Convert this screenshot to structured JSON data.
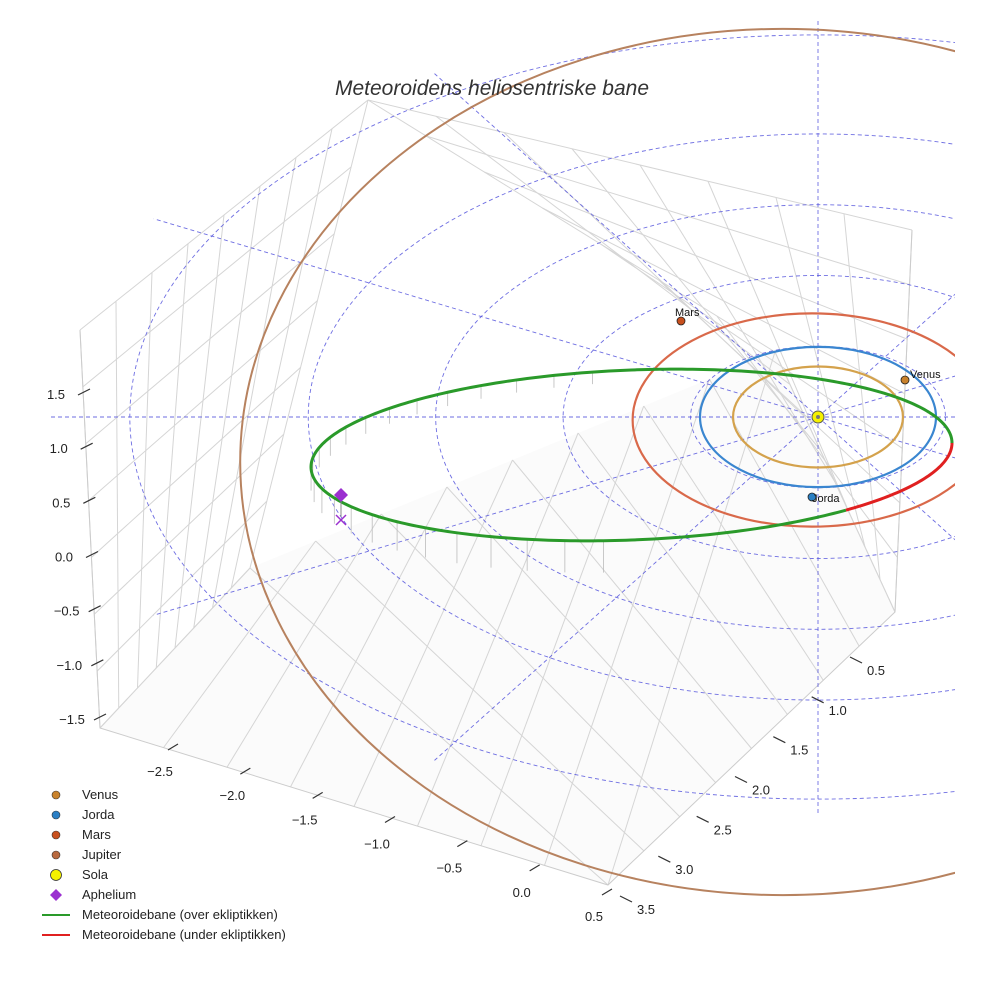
{
  "chart_data": {
    "type": "scatter3d",
    "title": "Meteoroidens heliosentriske bane",
    "axes": {
      "x_ticks": [
        "−2.5",
        "−2.0",
        "−1.5",
        "−1.0",
        "−0.5",
        "0.0",
        "0.5"
      ],
      "y_ticks": [
        "0.5",
        "1.0",
        "1.5",
        "2.0",
        "2.5",
        "3.0",
        "3.5"
      ],
      "z_ticks": [
        "1.5",
        "1.0",
        "0.5",
        "0.0",
        "−0.5",
        "−1.0",
        "−1.5"
      ],
      "x_range": [
        -2.8,
        0.6
      ],
      "y_range": [
        0.2,
        3.6
      ],
      "z_range": [
        -1.6,
        1.8
      ]
    },
    "planet_orbits": [
      {
        "name": "Venus",
        "radius_au": 0.72,
        "color": "#d4a24c"
      },
      {
        "name": "Jorda",
        "radius_au": 1.0,
        "color": "#3a86d0"
      },
      {
        "name": "Mars",
        "radius_au": 1.52,
        "color": "#d9694a"
      },
      {
        "name": "Jupiter",
        "radius_au": 5.2,
        "color": "#b7825f"
      }
    ],
    "planet_labels": [
      {
        "name": "Mars",
        "text": "Mars"
      },
      {
        "name": "Venus",
        "text": "Venus"
      },
      {
        "name": "Jorda",
        "text": "Jorda"
      }
    ],
    "meteoroid": {
      "semi_major_axis_au": 2.0,
      "eccentricity": 0.5,
      "aphelion_au": 3.0,
      "perihelion_au": 1.0
    },
    "legend": [
      {
        "label": "Venus",
        "marker": "dot",
        "color": "#c9822c"
      },
      {
        "label": "Jorda",
        "marker": "dot",
        "color": "#2a7fc4"
      },
      {
        "label": "Mars",
        "marker": "dot",
        "color": "#c8501e"
      },
      {
        "label": "Jupiter",
        "marker": "dot",
        "color": "#b8693f"
      },
      {
        "label": "Sola",
        "marker": "circle",
        "color": "#f5f100"
      },
      {
        "label": "Aphelium",
        "marker": "diamond",
        "color": "#9b30d0"
      },
      {
        "label": "Meteoroidebane (over ekliptikken)",
        "marker": "line",
        "color": "#2a9a2a"
      },
      {
        "label": "Meteoroidebane (under ekliptikken)",
        "marker": "line",
        "color": "#e02020"
      }
    ],
    "colors": {
      "over_ecliptic": "#2a9a2a",
      "under_ecliptic": "#e02020",
      "grid": "#d5d5d5",
      "reference_dashes": "#5555dd",
      "sun": "#f5f100",
      "aphelion": "#9b30d0"
    }
  }
}
